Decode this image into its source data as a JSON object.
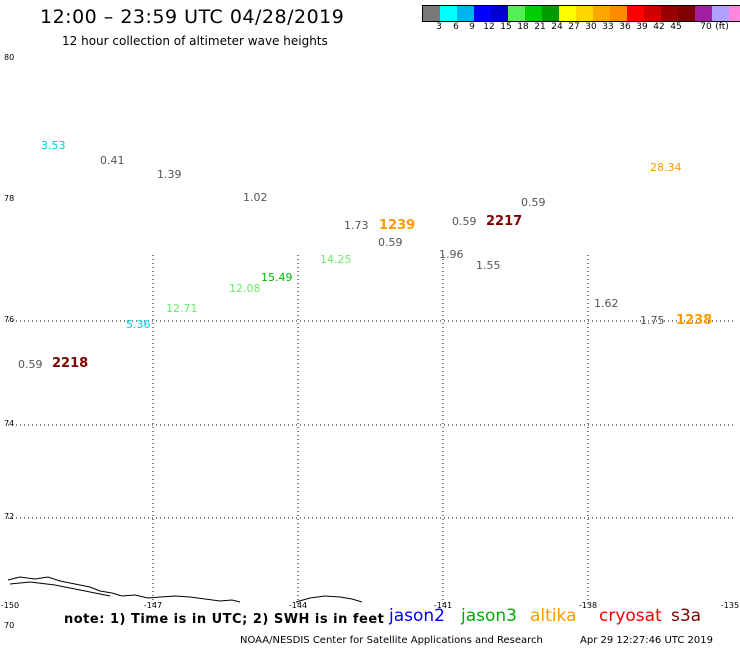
{
  "header": {
    "title": "12:00 – 23:59 UTC 04/28/2019",
    "subtitle": "12 hour collection of altimeter wave heights"
  },
  "colorbar": {
    "colors": [
      "#7a7a7a",
      "#00ffff",
      "#00b2ee",
      "#0000ff",
      "#0000cd",
      "#55ee55",
      "#00cc00",
      "#009900",
      "#ffff00",
      "#ffd700",
      "#ffa500",
      "#ff8c00",
      "#ff0000",
      "#cc0000",
      "#990000",
      "#800000",
      "#a020a0",
      "#b0a0ff",
      "#ff88dd",
      "#000000"
    ],
    "ticks": [
      "3",
      "6",
      "9",
      "12",
      "15",
      "18",
      "21",
      "24",
      "27",
      "30",
      "33",
      "36",
      "39",
      "42",
      "45",
      "70"
    ],
    "unit": "(ft)"
  },
  "axes": {
    "lat_labels": [
      "80",
      "78",
      "76",
      "74",
      "72",
      "70"
    ],
    "lon_labels": [
      "-150",
      "-147",
      "-144",
      "-141",
      "-138",
      "-135"
    ]
  },
  "observations": [
    {
      "text": "3.53",
      "color": "#00ccee"
    },
    {
      "text": "0.41",
      "color": "#555555"
    },
    {
      "text": "1.39",
      "color": "#555555"
    },
    {
      "text": "1.02",
      "color": "#555555"
    },
    {
      "text": "1.73",
      "color": "#555555"
    },
    {
      "text": "1239",
      "color": "#ff9900",
      "sat": true
    },
    {
      "text": "0.59",
      "color": "#555555"
    },
    {
      "text": "0.59",
      "color": "#555555"
    },
    {
      "text": "2217",
      "color": "#800000",
      "sat": true
    },
    {
      "text": "0.59",
      "color": "#555555"
    },
    {
      "text": "28.34",
      "color": "#ff9900"
    },
    {
      "text": "14.25",
      "color": "#66ee66"
    },
    {
      "text": "1.96",
      "color": "#555555"
    },
    {
      "text": "1.55",
      "color": "#555555"
    },
    {
      "text": "15.49",
      "color": "#00bb00"
    },
    {
      "text": "12.08",
      "color": "#66ee66"
    },
    {
      "text": "12.71",
      "color": "#66ee66"
    },
    {
      "text": "5.36",
      "color": "#00ccee"
    },
    {
      "text": "1.62",
      "color": "#555555"
    },
    {
      "text": "1.75",
      "color": "#555555"
    },
    {
      "text": "1238",
      "color": "#ff9900",
      "sat": true
    },
    {
      "text": "0.59",
      "color": "#555555"
    },
    {
      "text": "2218",
      "color": "#800000",
      "sat": true
    }
  ],
  "legend": {
    "note": "note: 1) Time is in UTC; 2) SWH is in feet",
    "satellites": [
      {
        "name": "jason2",
        "color": "#0000ff"
      },
      {
        "name": "jason3",
        "color": "#00aa00"
      },
      {
        "name": "altika",
        "color": "#ff9900"
      },
      {
        "name": "cryosat",
        "color": "#ff0000"
      },
      {
        "name": "s3a",
        "color": "#800000"
      }
    ]
  },
  "credit": "NOAA/NESDIS Center for Satellite Applications and Research",
  "timestamp": "Apr 29 12:27:46 UTC 2019"
}
